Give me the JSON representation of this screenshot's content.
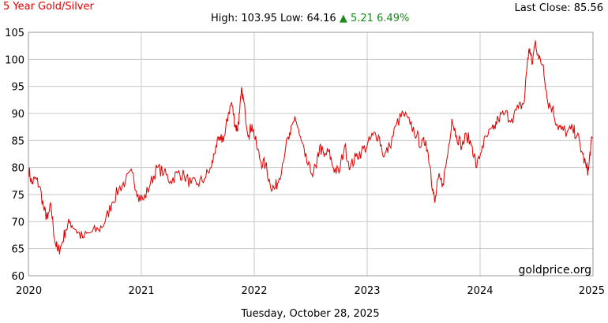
{
  "header": {
    "title": "5 Year Gold/Silver",
    "last_close_label": "Last Close:",
    "last_close_value": "85.56",
    "high_label": "High:",
    "high_value": "103.95",
    "low_label": "Low:",
    "low_value": "64.16",
    "change_arrow": "▲",
    "change_value": "5.21",
    "change_pct": "6.49%"
  },
  "footer": {
    "date": "Tuesday, October 28, 2025"
  },
  "watermark": "goldprice.org",
  "colors": {
    "line": "#e00000",
    "grid": "#c8c8c8",
    "title": "#e00000",
    "change": "#1a8a1a"
  },
  "chart_data": {
    "type": "line",
    "title": "5 Year Gold/Silver",
    "xlabel": "",
    "ylabel": "",
    "xlim": [
      2020,
      2025
    ],
    "ylim": [
      60,
      105
    ],
    "x_ticks": [
      "2020",
      "2021",
      "2022",
      "2023",
      "2024",
      "2025"
    ],
    "y_ticks": [
      60,
      65,
      70,
      75,
      80,
      85,
      90,
      95,
      100,
      105
    ],
    "grid": true,
    "series": [
      {
        "color": "#e00000",
        "points": [
          [
            2020.0,
            80.0
          ],
          [
            2020.03,
            77.0
          ],
          [
            2020.06,
            78.0
          ],
          [
            2020.1,
            76.5
          ],
          [
            2020.14,
            72.0
          ],
          [
            2020.17,
            70.5
          ],
          [
            2020.2,
            73.0
          ],
          [
            2020.23,
            67.0
          ],
          [
            2020.26,
            64.5
          ],
          [
            2020.29,
            65.5
          ],
          [
            2020.33,
            68.5
          ],
          [
            2020.37,
            70.0
          ],
          [
            2020.42,
            68.5
          ],
          [
            2020.48,
            67.0
          ],
          [
            2020.55,
            68.0
          ],
          [
            2020.62,
            68.5
          ],
          [
            2020.68,
            70.0
          ],
          [
            2020.74,
            73.5
          ],
          [
            2020.8,
            76.0
          ],
          [
            2020.86,
            77.5
          ],
          [
            2020.92,
            79.0
          ],
          [
            2020.97,
            75.0
          ],
          [
            2021.02,
            74.0
          ],
          [
            2021.08,
            77.0
          ],
          [
            2021.14,
            80.0
          ],
          [
            2021.2,
            79.0
          ],
          [
            2021.26,
            77.5
          ],
          [
            2021.32,
            79.0
          ],
          [
            2021.38,
            78.5
          ],
          [
            2021.44,
            77.0
          ],
          [
            2021.5,
            77.0
          ],
          [
            2021.56,
            78.0
          ],
          [
            2021.62,
            80.0
          ],
          [
            2021.66,
            84.0
          ],
          [
            2021.7,
            85.0
          ],
          [
            2021.74,
            86.0
          ],
          [
            2021.77,
            90.0
          ],
          [
            2021.8,
            92.0
          ],
          [
            2021.83,
            88.0
          ],
          [
            2021.85,
            87.0
          ],
          [
            2021.87,
            90.0
          ],
          [
            2021.89,
            94.5
          ],
          [
            2021.92,
            90.0
          ],
          [
            2021.95,
            86.0
          ],
          [
            2021.98,
            88.0
          ],
          [
            2022.02,
            84.0
          ],
          [
            2022.06,
            81.0
          ],
          [
            2022.1,
            80.5
          ],
          [
            2022.14,
            77.0
          ],
          [
            2022.18,
            76.0
          ],
          [
            2022.22,
            78.0
          ],
          [
            2022.28,
            84.0
          ],
          [
            2022.32,
            86.0
          ],
          [
            2022.36,
            89.5
          ],
          [
            2022.4,
            86.0
          ],
          [
            2022.45,
            82.0
          ],
          [
            2022.5,
            79.0
          ],
          [
            2022.55,
            80.0
          ],
          [
            2022.58,
            84.0
          ],
          [
            2022.62,
            82.0
          ],
          [
            2022.66,
            83.0
          ],
          [
            2022.7,
            80.0
          ],
          [
            2022.75,
            79.0
          ],
          [
            2022.8,
            84.0
          ],
          [
            2022.85,
            80.0
          ],
          [
            2022.9,
            82.0
          ],
          [
            2022.95,
            83.0
          ],
          [
            2023.0,
            84.0
          ],
          [
            2023.05,
            86.0
          ],
          [
            2023.1,
            86.0
          ],
          [
            2023.15,
            82.0
          ],
          [
            2023.2,
            84.0
          ],
          [
            2023.26,
            88.0
          ],
          [
            2023.32,
            90.0
          ],
          [
            2023.38,
            88.0
          ],
          [
            2023.44,
            86.0
          ],
          [
            2023.48,
            84.0
          ],
          [
            2023.52,
            85.0
          ],
          [
            2023.56,
            80.0
          ],
          [
            2023.58,
            76.0
          ],
          [
            2023.6,
            73.5
          ],
          [
            2023.63,
            78.0
          ],
          [
            2023.67,
            77.0
          ],
          [
            2023.71,
            82.0
          ],
          [
            2023.75,
            89.0
          ],
          [
            2023.79,
            86.0
          ],
          [
            2023.84,
            84.0
          ],
          [
            2023.88,
            86.0
          ],
          [
            2023.93,
            84.0
          ],
          [
            2023.97,
            80.0
          ],
          [
            2024.02,
            84.0
          ],
          [
            2024.07,
            86.0
          ],
          [
            2024.12,
            87.0
          ],
          [
            2024.16,
            89.0
          ],
          [
            2024.22,
            90.0
          ],
          [
            2024.28,
            89.0
          ],
          [
            2024.34,
            91.0
          ],
          [
            2024.39,
            92.0
          ],
          [
            2024.42,
            100.0
          ],
          [
            2024.44,
            102.0
          ],
          [
            2024.46,
            99.0
          ],
          [
            2024.49,
            103.5
          ],
          [
            2024.52,
            100.0
          ],
          [
            2024.56,
            99.0
          ],
          [
            2024.6,
            92.0
          ],
          [
            2024.64,
            91.0
          ],
          [
            2024.68,
            88.0
          ],
          [
            2024.72,
            87.0
          ],
          [
            2024.77,
            86.5
          ],
          [
            2024.82,
            87.0
          ],
          [
            2024.86,
            86.0
          ],
          [
            2024.9,
            83.0
          ],
          [
            2024.94,
            80.0
          ],
          [
            2024.96,
            79.5
          ],
          [
            2024.98,
            84.0
          ],
          [
            2025.0,
            85.56
          ]
        ]
      }
    ]
  }
}
